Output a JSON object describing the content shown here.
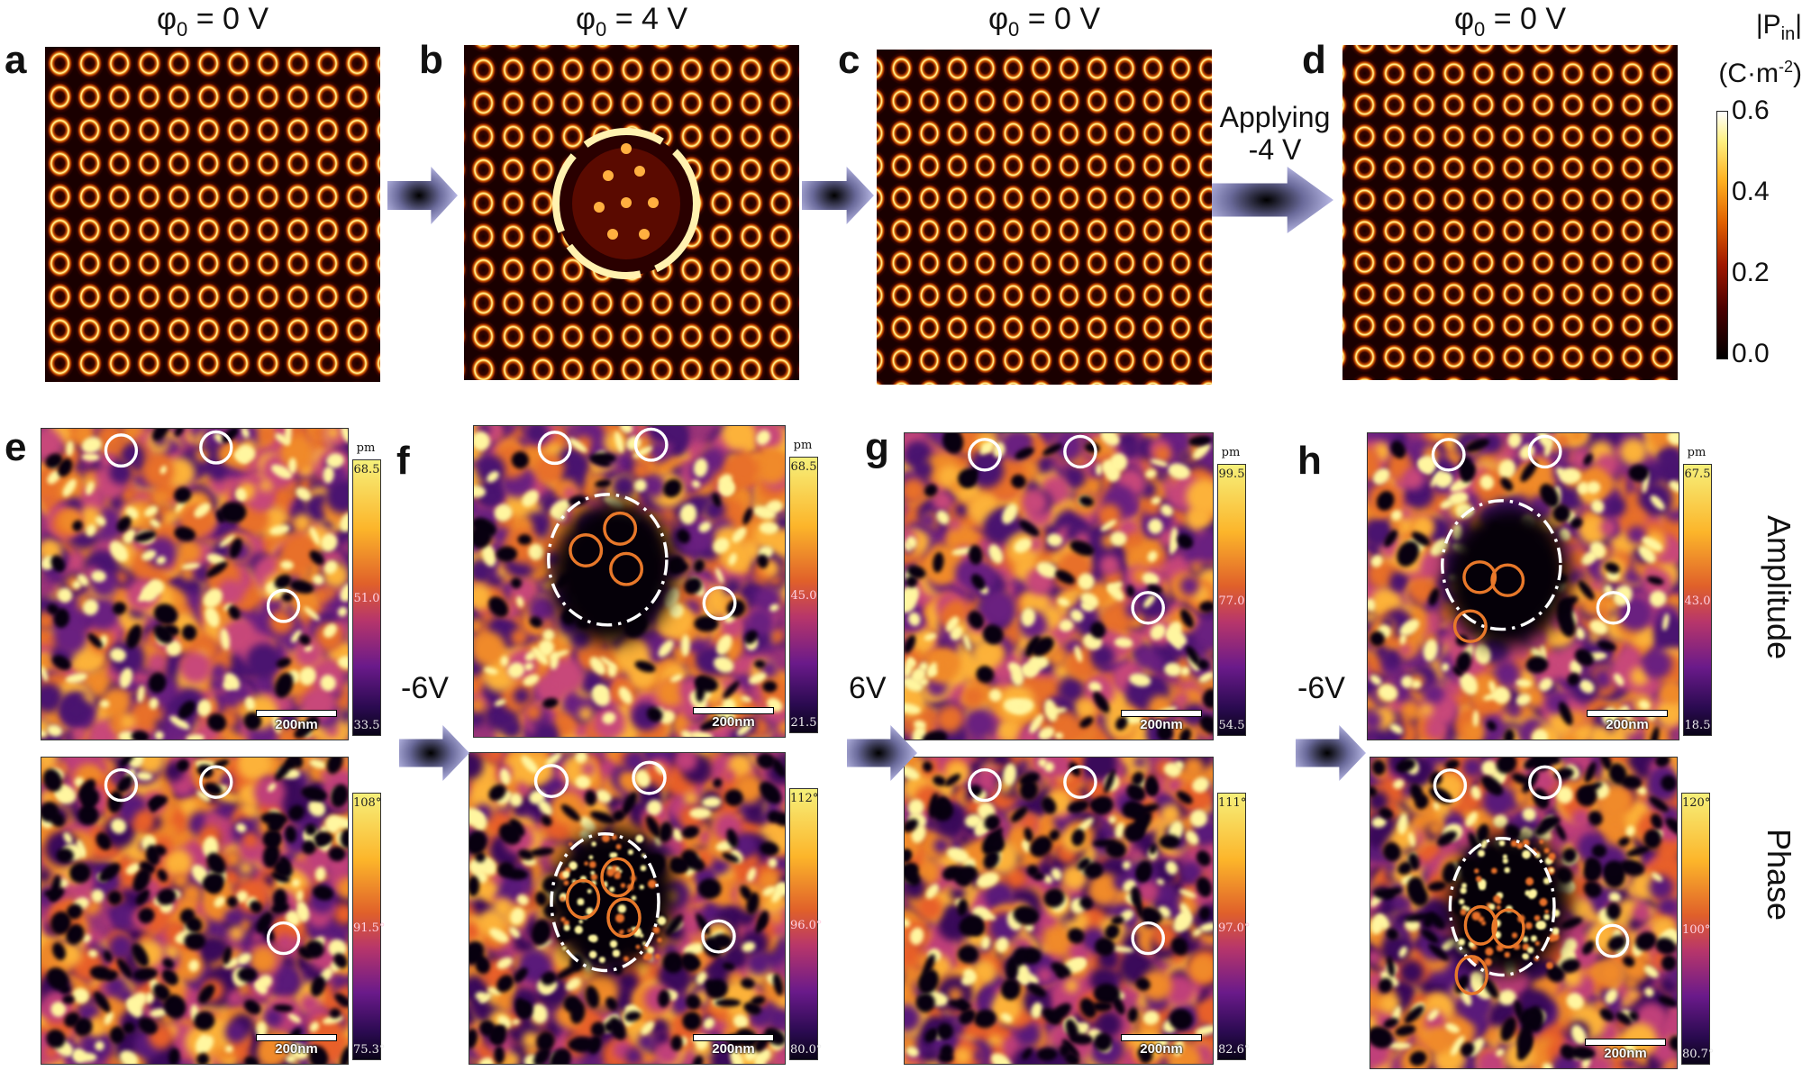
{
  "top_row": {
    "panels": [
      {
        "label": "a",
        "title_symbol": "φ",
        "title_sub": "0",
        "title_rest": " = 0 V"
      },
      {
        "label": "b",
        "title_symbol": "φ",
        "title_sub": "0",
        "title_rest": " = 4 V"
      },
      {
        "label": "c",
        "title_symbol": "φ",
        "title_sub": "0",
        "title_rest": " = 0 V"
      },
      {
        "label": "d",
        "title_symbol": "φ",
        "title_sub": "0",
        "title_rest": " = 0 V"
      }
    ],
    "arrow_text_line1": "Applying",
    "arrow_text_line2": "-4 V",
    "colorbar": {
      "title_line1": "|P",
      "title_sub": "in",
      "title_line1_end": "|",
      "title_line2": "(C·m",
      "title_sup": "-2",
      "title_line2_end": ")",
      "ticks": [
        "0.6",
        "0.4",
        "0.2",
        "0.0"
      ],
      "range": [
        0.0,
        0.6
      ],
      "colormap": "afmhot"
    }
  },
  "bottom_row": {
    "panels": [
      {
        "label": "e",
        "amplitude": {
          "unit": "pm",
          "max": "68.5",
          "mid": "51.0",
          "min": "33.5"
        },
        "phase": {
          "max": "108°",
          "mid": "91.5°",
          "min": "75.3°"
        },
        "scalebar": "200nm"
      },
      {
        "label": "f",
        "amplitude": {
          "unit": "pm",
          "max": "68.5",
          "mid": "45.0",
          "min": "21.5"
        },
        "phase": {
          "max": "112°",
          "mid": "96.0°",
          "min": "80.0°"
        },
        "scalebar": "200nm"
      },
      {
        "label": "g",
        "amplitude": {
          "unit": "pm",
          "max": "99.5",
          "mid": "77.0",
          "min": "54.5"
        },
        "phase": {
          "max": "111°",
          "mid": "97.0°",
          "min": "82.6°"
        },
        "scalebar": "200nm"
      },
      {
        "label": "h",
        "amplitude": {
          "unit": "pm",
          "max": "67.5",
          "mid": "43.0",
          "min": "18.5"
        },
        "phase": {
          "max": "120°",
          "mid": "100°",
          "min": "80.7°"
        },
        "scalebar": "200nm"
      }
    ],
    "voltages": [
      "-6V",
      "6V",
      "-6V"
    ],
    "row_labels": {
      "amplitude": "Amplitude",
      "phase": "Phase"
    },
    "colormap": "inferno",
    "circle_colors": {
      "white": "#ffffff",
      "orange": "#e8782a"
    }
  }
}
